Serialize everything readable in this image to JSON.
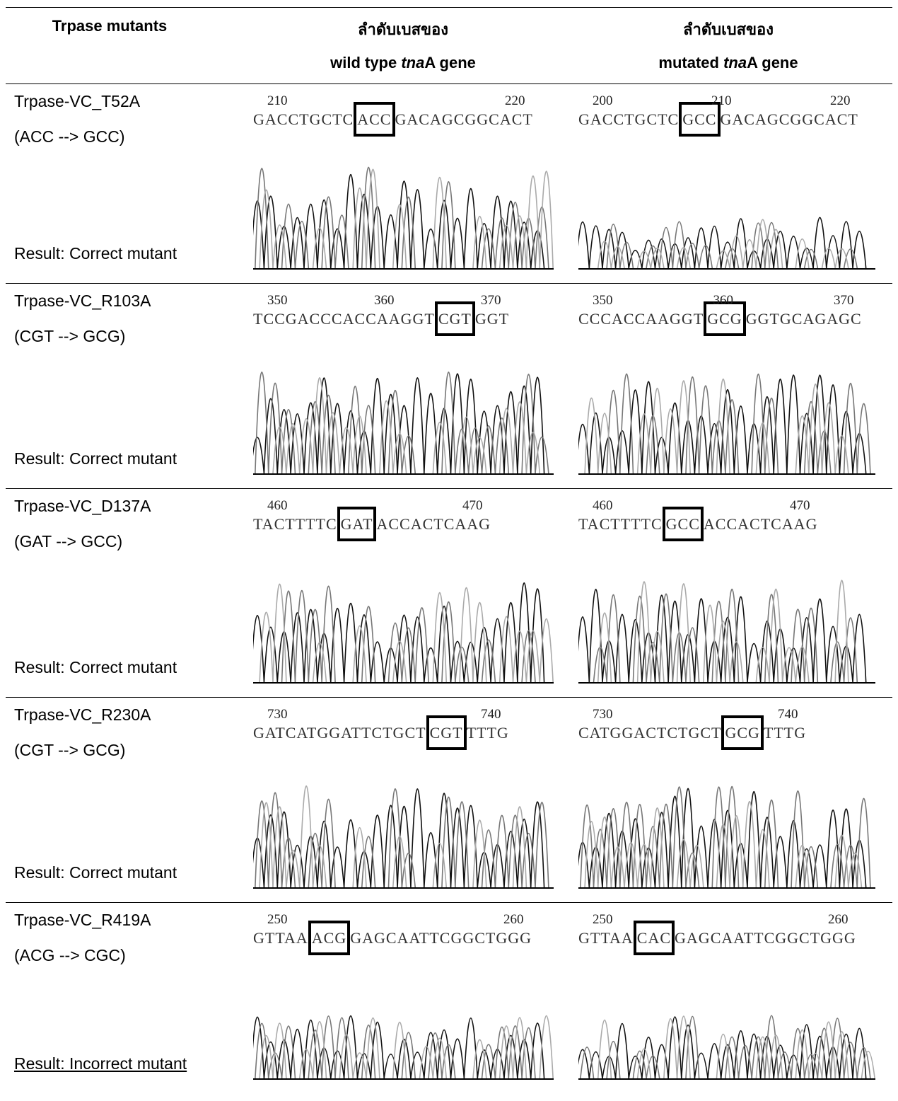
{
  "header": {
    "col1": "Trpase mutants",
    "col2_line1": "ลำดับเบสของ",
    "col2_line2": [
      "wild type ",
      "tna",
      "A gene"
    ],
    "col3_line1": "ลำดับเบสของ",
    "col3_line2": [
      "mutated ",
      "tna",
      "A gene"
    ]
  },
  "rows": [
    {
      "name": "Trpase-VC_T52A",
      "change": "(ACC --> GCC)",
      "result": "Result: Correct mutant",
      "wild": {
        "numbers": [
          210,
          220
        ],
        "before": "GACCTGCTC",
        "codon": "ACC",
        "after": "GACAGCGGCACT"
      },
      "mutated": {
        "numbers": [
          200,
          210,
          220
        ],
        "before": "GACCTGCTC",
        "codon": "GCC",
        "after": "GACAGCGGCACT"
      }
    },
    {
      "name": "Trpase-VC_R103A",
      "change": "(CGT --> GCG)",
      "result": "Result: Correct mutant",
      "wild": {
        "numbers": [
          350,
          360,
          370
        ],
        "before": "TCCGACCCACCAAGGT",
        "codon": "CGT",
        "after": "GGT"
      },
      "mutated": {
        "numbers": [
          350,
          360,
          370
        ],
        "before": "CCCACCAAGGT",
        "codon": "GCG",
        "after": "GGTGCAGAGC"
      }
    },
    {
      "name": "Trpase-VC_D137A",
      "change": "(GAT --> GCC)",
      "result": "Result: Correct mutant",
      "wild": {
        "numbers": [
          460,
          470
        ],
        "before": "TACTTTTC",
        "codon": "GAT",
        "after": "ACCACTCAAG"
      },
      "mutated": {
        "numbers": [
          460,
          470
        ],
        "before": "TACTTTTC",
        "codon": "GCC",
        "after": "ACCACTCAAG"
      }
    },
    {
      "name": "Trpase-VC_R230A",
      "change": "(CGT --> GCG)",
      "result": "Result: Correct mutant",
      "wild": {
        "numbers": [
          730,
          740
        ],
        "before": "GATCATGGATTCTGCT",
        "codon": "CGT",
        "after": "TTTG"
      },
      "mutated": {
        "numbers": [
          730,
          740
        ],
        "before": "CATGGACTCTGCT",
        "codon": "GCG",
        "after": "TTTG"
      }
    },
    {
      "name": "Trpase-VC_R419A",
      "change": "(ACG --> CGC)",
      "result": "Result: Incorrect mutant",
      "wild": {
        "numbers": [
          250,
          260
        ],
        "before": "GTTAA",
        "codon": "ACG",
        "after": "GAGCAATTCGGCTGGG"
      },
      "mutated": {
        "numbers": [
          250,
          260
        ],
        "before": "GTTAA",
        "codon": "CAC",
        "after": "GAGCAATTCGGCTGGG"
      }
    }
  ]
}
